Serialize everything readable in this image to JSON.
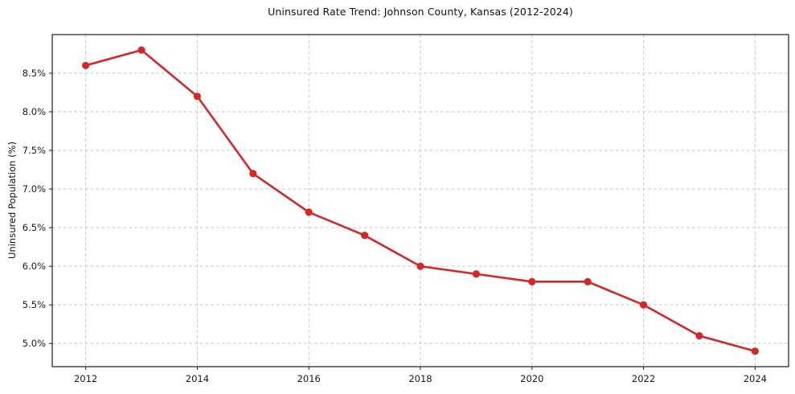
{
  "chart_data": {
    "type": "line",
    "title": "Uninsured Rate Trend: Johnson County, Kansas (2012-2024)",
    "xlabel": "",
    "ylabel": "Uninsured Population (%)",
    "x": [
      2012,
      2013,
      2014,
      2015,
      2016,
      2017,
      2018,
      2019,
      2020,
      2021,
      2022,
      2023,
      2024
    ],
    "values": [
      8.6,
      8.8,
      8.2,
      7.2,
      6.7,
      6.4,
      6.0,
      5.9,
      5.8,
      5.8,
      5.5,
      5.1,
      4.9
    ],
    "series_name": "Uninsured rate",
    "xlim": [
      2011.4,
      2024.6
    ],
    "ylim": [
      4.7,
      9.0
    ],
    "xticks": [
      2012,
      2014,
      2016,
      2018,
      2020,
      2022,
      2024
    ],
    "xtick_labels": [
      "2012",
      "2014",
      "2016",
      "2018",
      "2020",
      "2022",
      "2024"
    ],
    "yticks": [
      5.0,
      5.5,
      6.0,
      6.5,
      7.0,
      7.5,
      8.0,
      8.5
    ],
    "ytick_labels": [
      "5.0%",
      "5.5%",
      "6.0%",
      "6.5%",
      "7.0%",
      "7.5%",
      "8.0%",
      "8.5%"
    ],
    "grid": true,
    "legend_position": "none",
    "line_color": "#d62728",
    "marker_color": "#d62728",
    "grid_color": "#c9c9c9",
    "spine_color": "#1a1a1a",
    "tick_text_color": "#1a1a1a",
    "background_color": "#ffffff"
  }
}
